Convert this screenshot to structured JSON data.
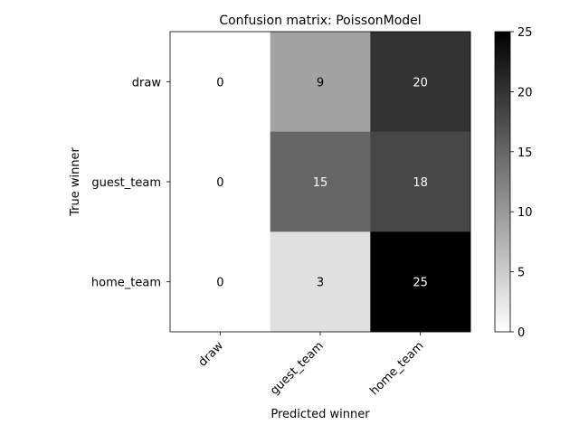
{
  "chart_data": {
    "type": "heatmap",
    "title": "Confusion matrix: PoissonModel",
    "xlabel": "Predicted winner",
    "ylabel": "True winner",
    "x_categories": [
      "draw",
      "guest_team",
      "home_team"
    ],
    "y_categories": [
      "draw",
      "guest_team",
      "home_team"
    ],
    "values": [
      [
        0,
        9,
        20
      ],
      [
        0,
        15,
        18
      ],
      [
        0,
        3,
        25
      ]
    ],
    "colormap": "greys",
    "color_range": [
      0,
      25
    ],
    "colorbar_ticks": [
      "0",
      "5",
      "10",
      "15",
      "20",
      "25"
    ],
    "cell_text_colors": {
      "light_cell": "#000000",
      "dark_cell": "#ffffff"
    },
    "grid": false
  }
}
